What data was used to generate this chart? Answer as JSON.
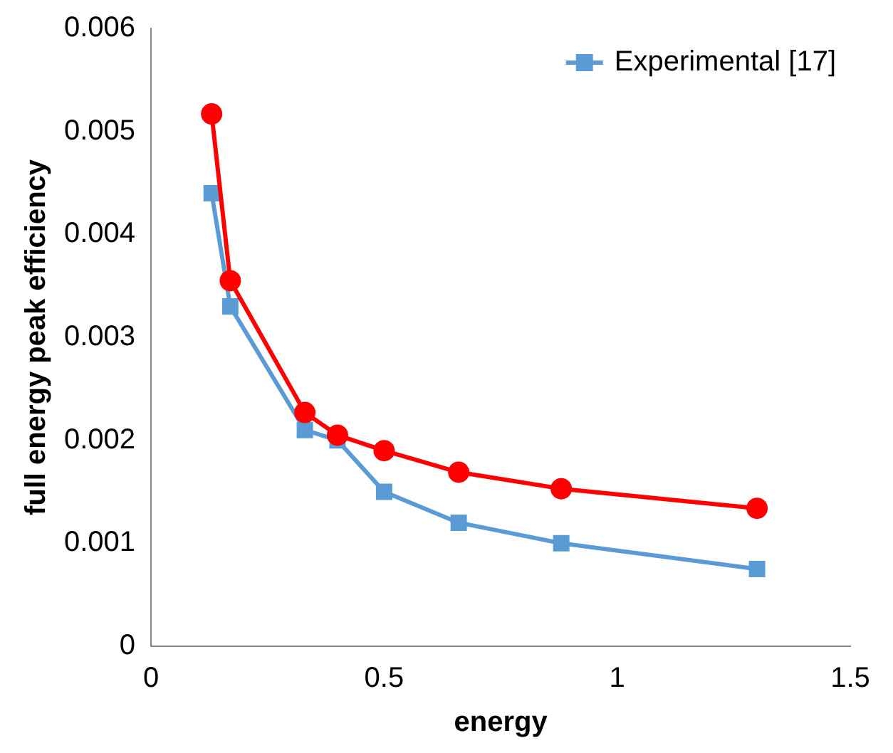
{
  "chart_data": {
    "type": "line",
    "xlabel": "energy",
    "ylabel": "full energy peak efficiency",
    "xlim": [
      0,
      1.5
    ],
    "xticks": [
      0,
      0.5,
      1,
      1.5
    ],
    "ylim": [
      0,
      0.006
    ],
    "yticks": [
      0,
      0.001,
      0.002,
      0.003,
      0.004,
      0.005,
      0.006
    ],
    "grid": false,
    "legend": "top right",
    "series": [
      {
        "name": "Experimental [17]",
        "color": "#5b9bd5",
        "marker": "square",
        "x": [
          0.13,
          0.17,
          0.33,
          0.4,
          0.5,
          0.66,
          0.88,
          1.3
        ],
        "values": [
          0.0044,
          0.0033,
          0.0021,
          0.002,
          0.0015,
          0.0012,
          0.001,
          0.00075
        ]
      },
      {
        "color": "#ff0000",
        "marker": "circle",
        "x": [
          0.13,
          0.17,
          0.33,
          0.4,
          0.5,
          0.66,
          0.88,
          1.3
        ],
        "values": [
          0.00517,
          0.00355,
          0.00227,
          0.00205,
          0.0019,
          0.00169,
          0.00153,
          0.00134
        ]
      }
    ]
  }
}
